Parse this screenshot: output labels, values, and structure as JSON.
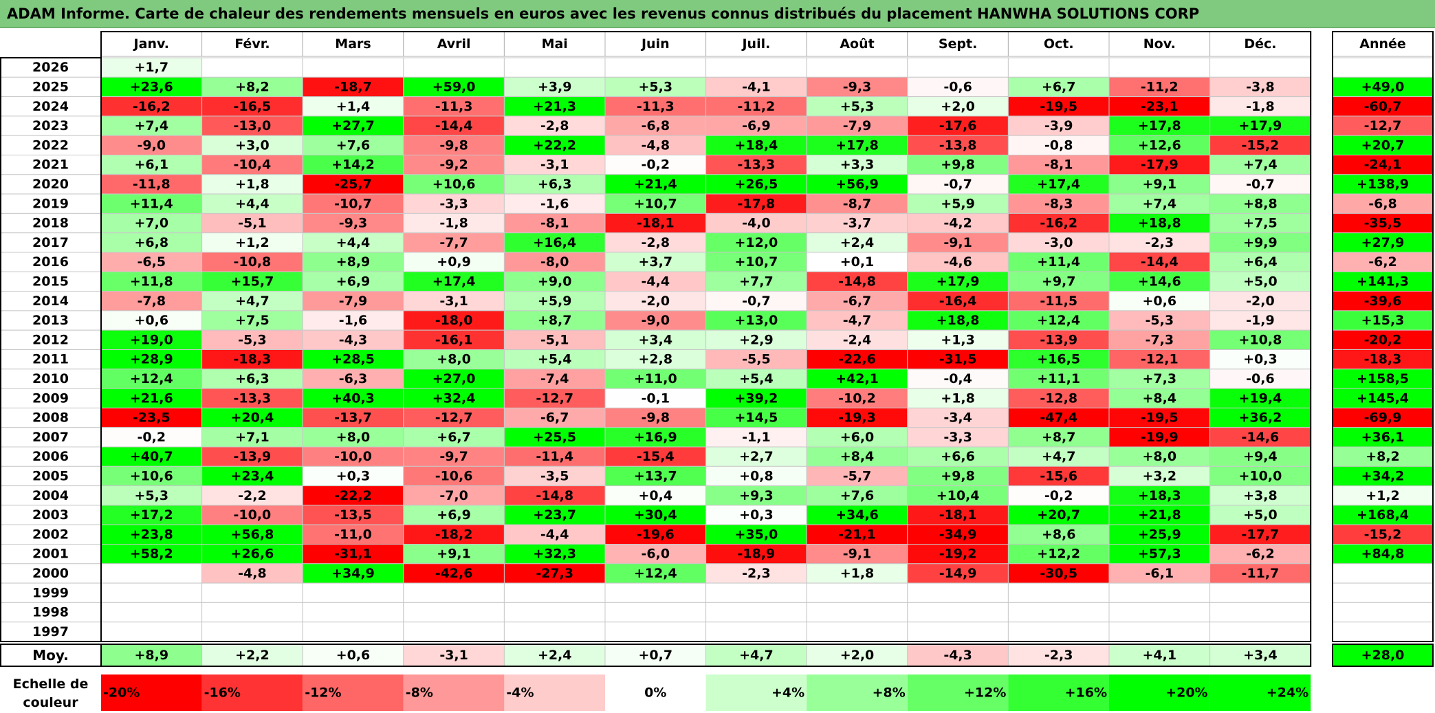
{
  "title": "ADAM Informe. Carte de chaleur des rendements mensuels en euros avec les revenus connus distribués du placement HANWHA SOLUTIONS CORP",
  "chart_data": {
    "type": "heatmap",
    "months": [
      "Janv.",
      "Févr.",
      "Mars",
      "Avril",
      "Mai",
      "Juin",
      "Juil.",
      "Août",
      "Sept.",
      "Oct.",
      "Nov.",
      "Déc."
    ],
    "year_header": "Année",
    "avg_label": "Moy.",
    "scale_label": "Echelle de couleur",
    "rows": [
      {
        "year": "2026",
        "months": [
          "+1,7",
          "",
          "",
          "",
          "",
          "",
          "",
          "",
          "",
          "",
          "",
          ""
        ],
        "annual": ""
      },
      {
        "year": "2025",
        "months": [
          "+23,6",
          "+8,2",
          "-18,7",
          "+59,0",
          "+3,9",
          "+5,3",
          "-4,1",
          "-9,3",
          "-0,6",
          "+6,7",
          "-11,2",
          "-3,8"
        ],
        "annual": "+49,0"
      },
      {
        "year": "2024",
        "months": [
          "-16,2",
          "-16,5",
          "+1,4",
          "-11,3",
          "+21,3",
          "-11,3",
          "-11,2",
          "+5,3",
          "+2,0",
          "-19,5",
          "-23,1",
          "-1,8"
        ],
        "annual": "-60,7"
      },
      {
        "year": "2023",
        "months": [
          "+7,4",
          "-13,0",
          "+27,7",
          "-14,4",
          "-2,8",
          "-6,8",
          "-6,9",
          "-7,9",
          "-17,6",
          "-3,9",
          "+17,8",
          "+17,9"
        ],
        "annual": "-12,7"
      },
      {
        "year": "2022",
        "months": [
          "-9,0",
          "+3,0",
          "+7,6",
          "-9,8",
          "+22,2",
          "-4,8",
          "+18,4",
          "+17,8",
          "-13,8",
          "-0,8",
          "+12,6",
          "-15,2"
        ],
        "annual": "+20,7"
      },
      {
        "year": "2021",
        "months": [
          "+6,1",
          "-10,4",
          "+14,2",
          "-9,2",
          "-3,1",
          "-0,2",
          "-13,3",
          "+3,3",
          "+9,8",
          "-8,1",
          "-17,9",
          "+7,4"
        ],
        "annual": "-24,1"
      },
      {
        "year": "2020",
        "months": [
          "-11,8",
          "+1,8",
          "-25,7",
          "+10,6",
          "+6,3",
          "+21,4",
          "+26,5",
          "+56,9",
          "-0,7",
          "+17,4",
          "+9,1",
          "-0,7"
        ],
        "annual": "+138,9"
      },
      {
        "year": "2019",
        "months": [
          "+11,4",
          "+4,4",
          "-10,7",
          "-3,3",
          "-1,6",
          "+10,7",
          "-17,8",
          "-8,7",
          "+5,9",
          "-8,3",
          "+7,4",
          "+8,8"
        ],
        "annual": "-6,8"
      },
      {
        "year": "2018",
        "months": [
          "+7,0",
          "-5,1",
          "-9,3",
          "-1,8",
          "-8,1",
          "-18,1",
          "-4,0",
          "-3,7",
          "-4,2",
          "-16,2",
          "+18,8",
          "+7,5"
        ],
        "annual": "-35,5"
      },
      {
        "year": "2017",
        "months": [
          "+6,8",
          "+1,2",
          "+4,4",
          "-7,7",
          "+16,4",
          "-2,8",
          "+12,0",
          "+2,4",
          "-9,1",
          "-3,0",
          "-2,3",
          "+9,9"
        ],
        "annual": "+27,9"
      },
      {
        "year": "2016",
        "months": [
          "-6,5",
          "-10,8",
          "+8,9",
          "+0,9",
          "-8,0",
          "+3,7",
          "+10,7",
          "+0,1",
          "-4,6",
          "+11,4",
          "-14,4",
          "+6,4"
        ],
        "annual": "-6,2"
      },
      {
        "year": "2015",
        "months": [
          "+11,8",
          "+15,7",
          "+6,9",
          "+17,4",
          "+9,0",
          "-4,4",
          "+7,7",
          "-14,8",
          "+17,9",
          "+9,7",
          "+14,6",
          "+5,0"
        ],
        "annual": "+141,3"
      },
      {
        "year": "2014",
        "months": [
          "-7,8",
          "+4,7",
          "-7,9",
          "-3,1",
          "+5,9",
          "-2,0",
          "-0,7",
          "-6,7",
          "-16,4",
          "-11,5",
          "+0,6",
          "-2,0"
        ],
        "annual": "-39,6"
      },
      {
        "year": "2013",
        "months": [
          "+0,6",
          "+7,5",
          "-1,6",
          "-18,0",
          "+8,7",
          "-9,0",
          "+13,0",
          "-4,7",
          "+18,8",
          "+12,4",
          "-5,3",
          "-1,9"
        ],
        "annual": "+15,3"
      },
      {
        "year": "2012",
        "months": [
          "+19,0",
          "-5,3",
          "-4,3",
          "-16,1",
          "-5,1",
          "+3,4",
          "+2,9",
          "-2,4",
          "+1,3",
          "-13,9",
          "-7,3",
          "+10,8"
        ],
        "annual": "-20,2"
      },
      {
        "year": "2011",
        "months": [
          "+28,9",
          "-18,3",
          "+28,5",
          "+8,0",
          "+5,4",
          "+2,8",
          "-5,5",
          "-22,6",
          "-31,5",
          "+16,5",
          "-12,1",
          "+0,3"
        ],
        "annual": "-18,3"
      },
      {
        "year": "2010",
        "months": [
          "+12,4",
          "+6,3",
          "-6,3",
          "+27,0",
          "-7,4",
          "+11,0",
          "+5,4",
          "+42,1",
          "-0,4",
          "+11,1",
          "+7,3",
          "-0,6"
        ],
        "annual": "+158,5"
      },
      {
        "year": "2009",
        "months": [
          "+21,6",
          "-13,3",
          "+40,3",
          "+32,4",
          "-12,7",
          "-0,1",
          "+39,2",
          "-10,2",
          "+1,8",
          "-12,8",
          "+8,4",
          "+19,4"
        ],
        "annual": "+145,4"
      },
      {
        "year": "2008",
        "months": [
          "-23,5",
          "+20,4",
          "-13,7",
          "-12,7",
          "-6,7",
          "-9,8",
          "+14,5",
          "-19,3",
          "-3,4",
          "-47,4",
          "-19,5",
          "+36,2"
        ],
        "annual": "-69,9"
      },
      {
        "year": "2007",
        "months": [
          "-0,2",
          "+7,1",
          "+8,0",
          "+6,7",
          "+25,5",
          "+16,9",
          "-1,1",
          "+6,0",
          "-3,3",
          "+8,7",
          "-19,9",
          "-14,6"
        ],
        "annual": "+36,1"
      },
      {
        "year": "2006",
        "months": [
          "+40,7",
          "-13,9",
          "-10,0",
          "-9,7",
          "-11,4",
          "-15,4",
          "+2,7",
          "+8,4",
          "+6,6",
          "+4,7",
          "+8,0",
          "+9,4"
        ],
        "annual": "+8,2"
      },
      {
        "year": "2005",
        "months": [
          "+10,6",
          "+23,4",
          "+0,3",
          "-10,6",
          "-3,5",
          "+13,7",
          "+0,8",
          "-5,7",
          "+9,8",
          "-15,6",
          "+3,2",
          "+10,0"
        ],
        "annual": "+34,2"
      },
      {
        "year": "2004",
        "months": [
          "+5,3",
          "-2,2",
          "-22,2",
          "-7,0",
          "-14,8",
          "+0,4",
          "+9,3",
          "+7,6",
          "+10,4",
          "-0,2",
          "+18,3",
          "+3,8"
        ],
        "annual": "+1,2"
      },
      {
        "year": "2003",
        "months": [
          "+17,2",
          "-10,0",
          "-13,5",
          "+6,9",
          "+23,7",
          "+30,4",
          "+0,3",
          "+34,6",
          "-18,1",
          "+20,7",
          "+21,8",
          "+5,0"
        ],
        "annual": "+168,4"
      },
      {
        "year": "2002",
        "months": [
          "+23,8",
          "+56,8",
          "-11,0",
          "-18,2",
          "-4,4",
          "-19,6",
          "+35,0",
          "-21,1",
          "-34,9",
          "+8,6",
          "+25,9",
          "-17,7"
        ],
        "annual": "-15,2"
      },
      {
        "year": "2001",
        "months": [
          "+58,2",
          "+26,6",
          "-31,1",
          "+9,1",
          "+32,3",
          "-6,0",
          "-18,9",
          "-9,1",
          "-19,2",
          "+12,2",
          "+57,3",
          "-6,2"
        ],
        "annual": "+84,8"
      },
      {
        "year": "2000",
        "months": [
          "",
          "-4,8",
          "+34,9",
          "-42,6",
          "-27,3",
          "+12,4",
          "-2,3",
          "+1,8",
          "-14,9",
          "-30,5",
          "-6,1",
          "-11,7"
        ],
        "annual": ""
      },
      {
        "year": "1999",
        "months": [
          "",
          "",
          "",
          "",
          "",
          "",
          "",
          "",
          "",
          "",
          "",
          ""
        ],
        "annual": ""
      },
      {
        "year": "1998",
        "months": [
          "",
          "",
          "",
          "",
          "",
          "",
          "",
          "",
          "",
          "",
          "",
          ""
        ],
        "annual": ""
      },
      {
        "year": "1997",
        "months": [
          "",
          "",
          "",
          "",
          "",
          "",
          "",
          "",
          "",
          "",
          "",
          ""
        ],
        "annual": ""
      }
    ],
    "averages": {
      "months": [
        "+8,9",
        "+2,2",
        "+0,6",
        "-3,1",
        "+2,4",
        "+0,7",
        "+4,7",
        "+2,0",
        "-4,3",
        "-2,3",
        "+4,1",
        "+3,4"
      ],
      "annual": "+28,0"
    },
    "color_scale": [
      "-20%",
      "-16%",
      "-12%",
      "-8%",
      "-4%",
      "0%",
      "+4%",
      "+8%",
      "+12%",
      "+16%",
      "+20%",
      "+24%"
    ]
  }
}
